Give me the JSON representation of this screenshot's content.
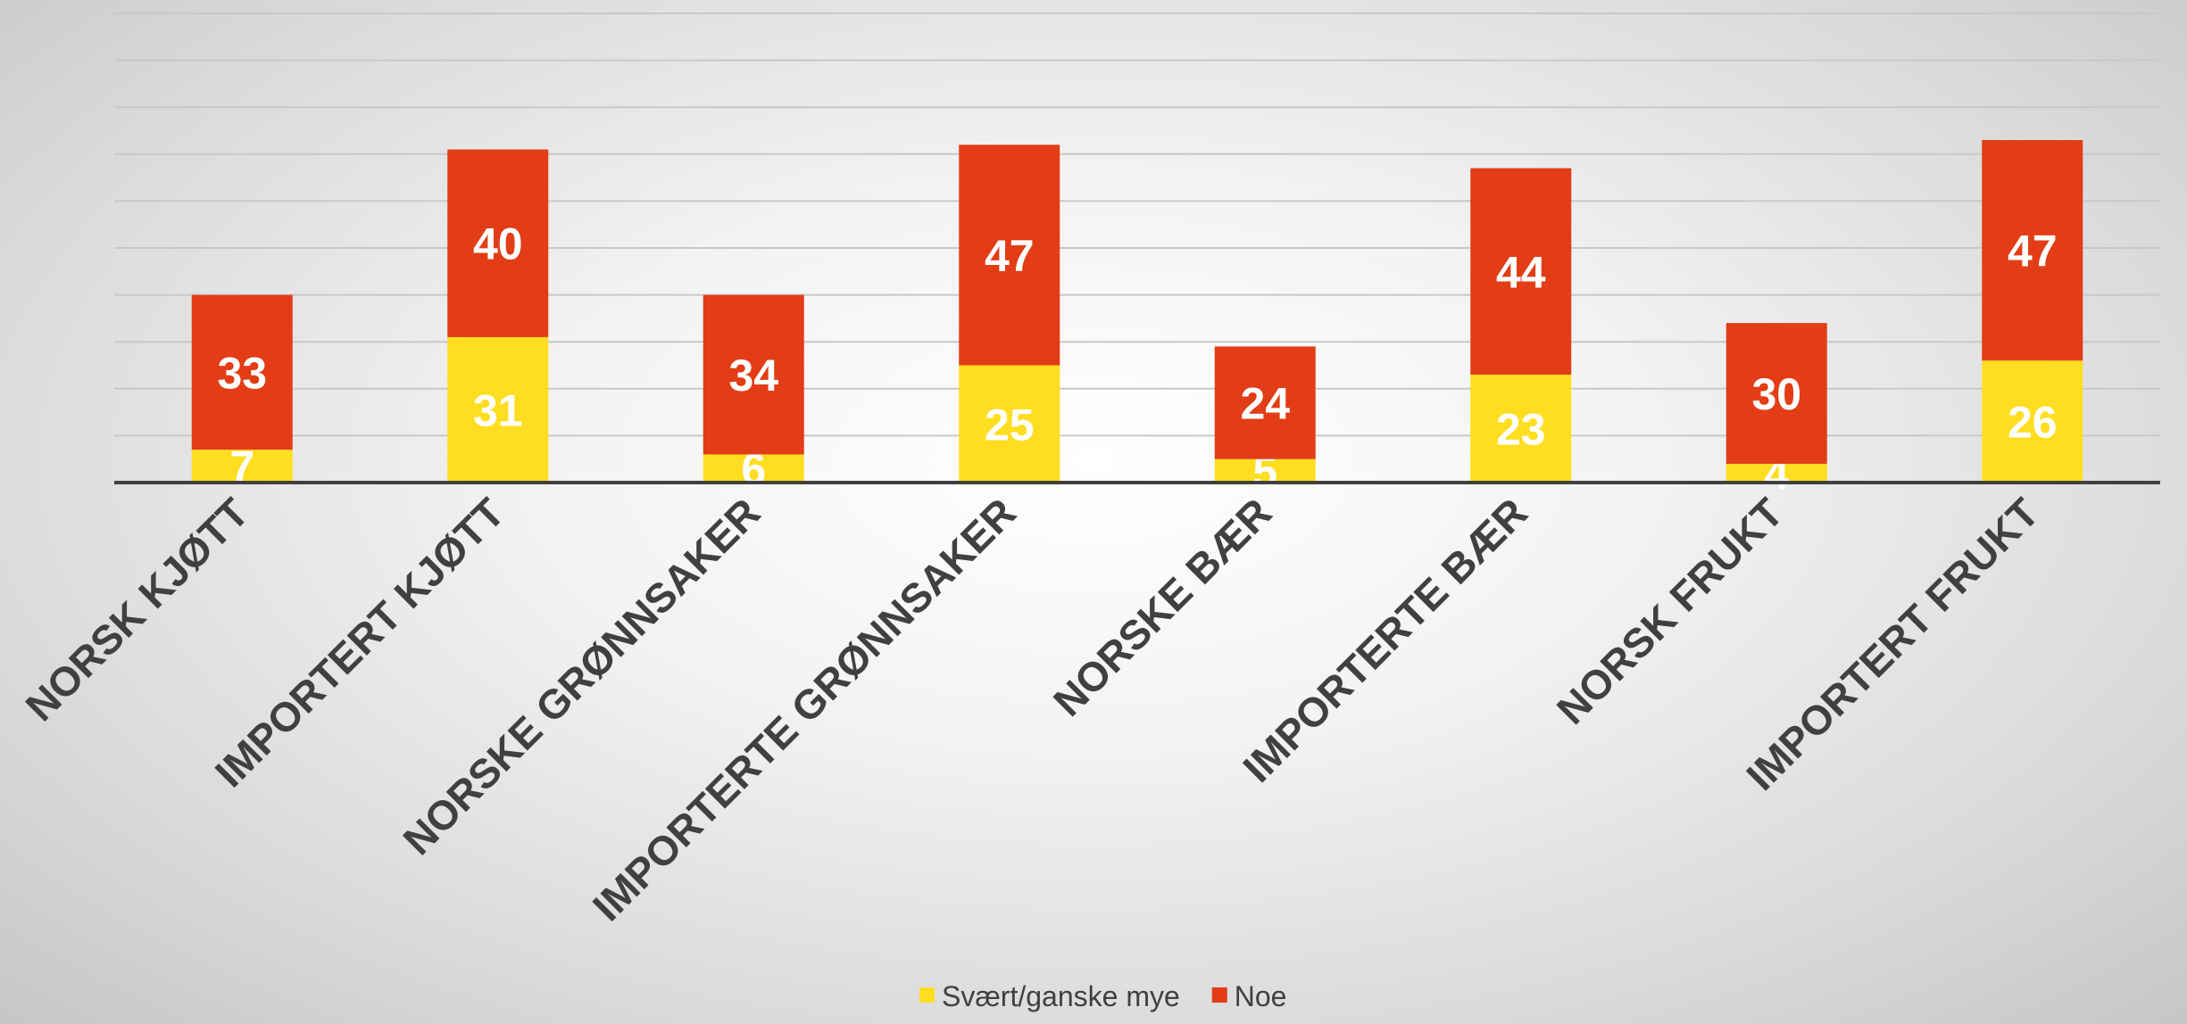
{
  "chart_data": {
    "type": "bar",
    "stacked": true,
    "categories": [
      "NORSK KJØTT",
      "IMPORTERT KJØTT",
      "NORSKE GRØNNSAKER",
      "IMPORTERTE GRØNNSAKER",
      "NORSKE BÆR",
      "IMPORTERTE BÆR",
      "NORSK FRUKT",
      "IMPORTERT FRUKT"
    ],
    "series": [
      {
        "name": "Svært/ganske mye",
        "color": "#FFDE21",
        "values": [
          7,
          31,
          6,
          25,
          5,
          23,
          4,
          26
        ]
      },
      {
        "name": "Noe",
        "color": "#E23D16",
        "values": [
          33,
          40,
          34,
          47,
          24,
          44,
          30,
          47
        ]
      }
    ],
    "ylim": [
      0,
      100
    ],
    "grid": true,
    "legend": "bottom-center",
    "data_labels": true
  }
}
